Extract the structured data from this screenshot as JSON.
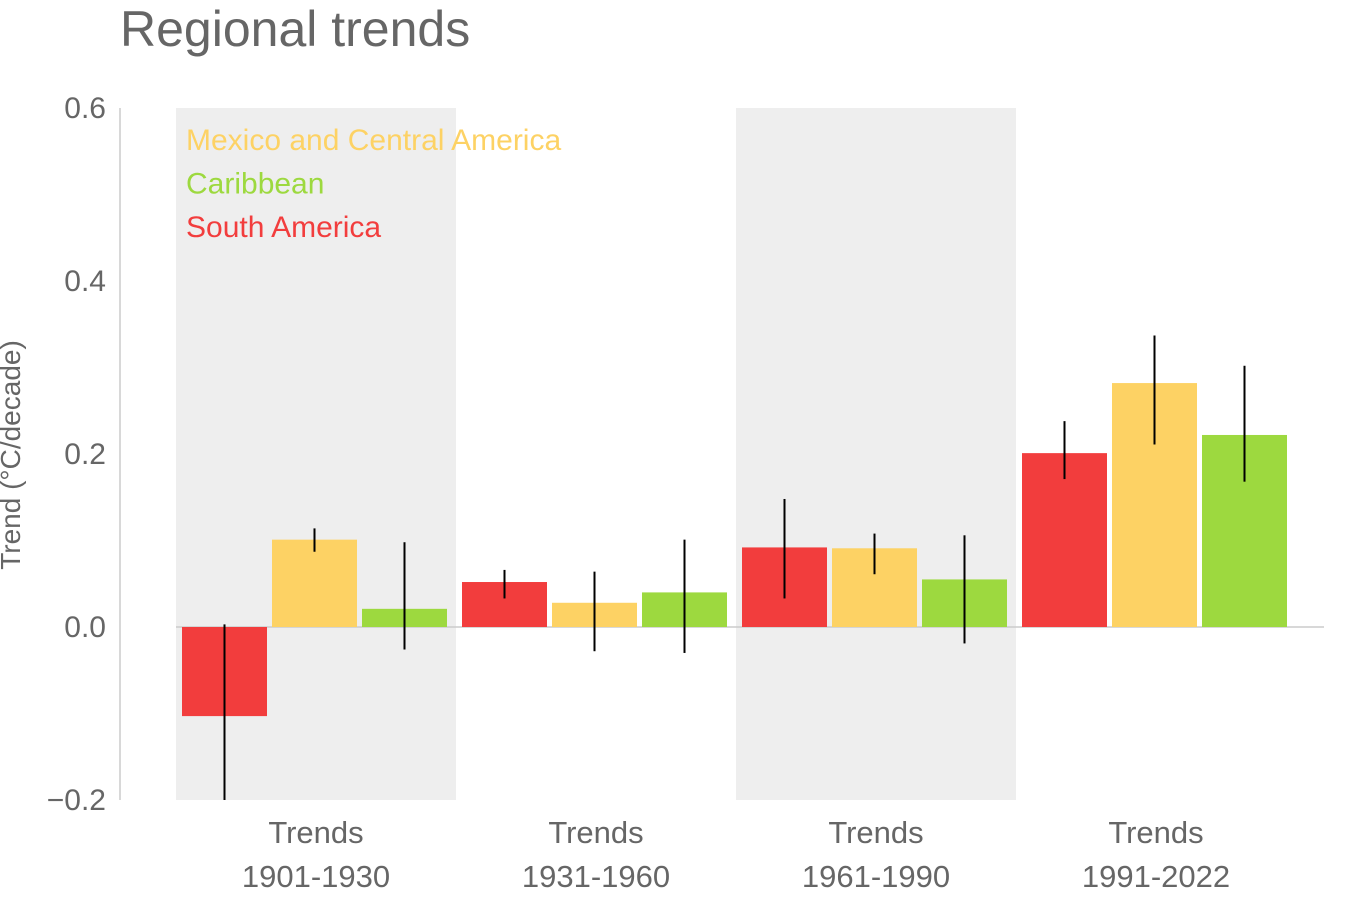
{
  "chart_data": {
    "type": "bar",
    "title": "Regional trends",
    "ylabel": "Trend (°C/decade)",
    "xlabel": "",
    "ylim": [
      -0.2,
      0.6
    ],
    "yticks": [
      -0.2,
      0.0,
      0.2,
      0.4,
      0.6
    ],
    "ytick_labels": [
      "−0.2",
      "0.0",
      "0.2",
      "0.4",
      "0.6"
    ],
    "categories": [
      {
        "line1": "Trends",
        "line2": "1901-1930",
        "shaded": true
      },
      {
        "line1": "Trends",
        "line2": "1931-1960",
        "shaded": false
      },
      {
        "line1": "Trends",
        "line2": "1961-1990",
        "shaded": true
      },
      {
        "line1": "Trends",
        "line2": "1991-2022",
        "shaded": false
      }
    ],
    "series": [
      {
        "name": "South America",
        "color": "#f23d3d",
        "values": [
          -0.103,
          0.052,
          0.092,
          0.201
        ],
        "err_low": [
          -0.2,
          0.033,
          0.033,
          0.171
        ],
        "err_high": [
          0.003,
          0.066,
          0.148,
          0.238
        ]
      },
      {
        "name": "Mexico and Central America",
        "color": "#fdd264",
        "values": [
          0.101,
          0.028,
          0.091,
          0.282
        ],
        "err_low": [
          0.087,
          -0.028,
          0.061,
          0.211
        ],
        "err_high": [
          0.114,
          0.064,
          0.108,
          0.337
        ]
      },
      {
        "name": "Caribbean",
        "color": "#9dd93f",
        "values": [
          0.021,
          0.04,
          0.055,
          0.222
        ],
        "err_low": [
          -0.026,
          -0.03,
          -0.019,
          0.168
        ],
        "err_high": [
          0.098,
          0.101,
          0.106,
          0.302
        ]
      }
    ],
    "legend": {
      "placement": "top-left",
      "order": [
        "Mexico and Central America",
        "Caribbean",
        "South America"
      ]
    },
    "grid": false
  }
}
